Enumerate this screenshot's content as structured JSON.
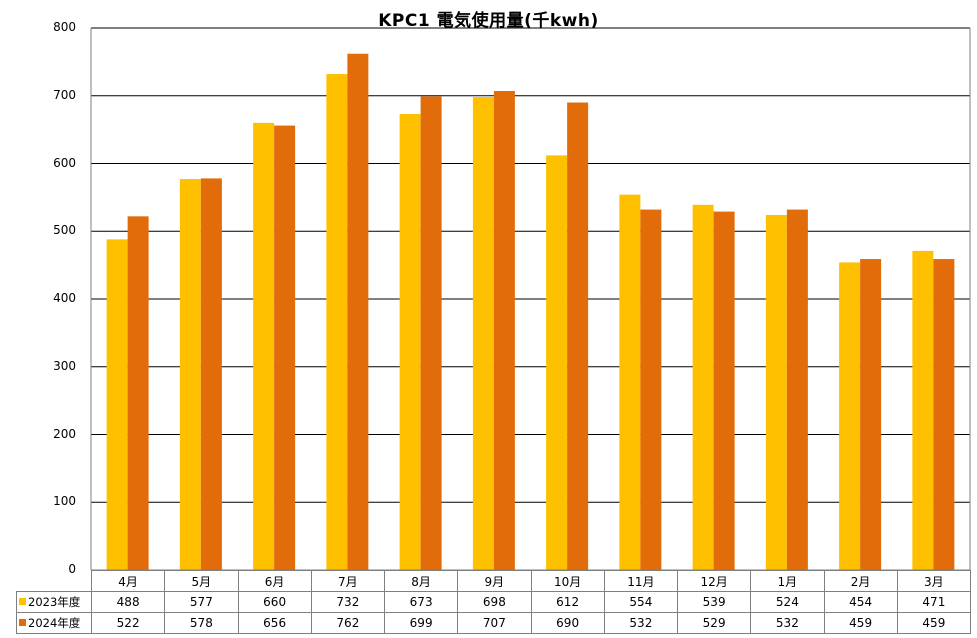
{
  "chart_data": {
    "type": "bar",
    "title": "KPC1 電気使用量(千kwh)",
    "categories": [
      "4月",
      "5月",
      "6月",
      "7月",
      "8月",
      "9月",
      "10月",
      "11月",
      "12月",
      "1月",
      "2月",
      "3月"
    ],
    "series": [
      {
        "name": "2023年度",
        "color": "#FFC000",
        "values": [
          488,
          577,
          660,
          732,
          673,
          698,
          612,
          554,
          539,
          524,
          454,
          471
        ]
      },
      {
        "name": "2024年度",
        "color": "#E36C0A",
        "values": [
          522,
          578,
          656,
          762,
          699,
          707,
          690,
          532,
          529,
          532,
          459,
          459
        ]
      }
    ],
    "ylim": [
      0,
      800
    ],
    "yticks": [
      "0",
      "100",
      "200",
      "300",
      "400",
      "500",
      "600",
      "700",
      "800"
    ],
    "grid": true,
    "legend": "data-table-below",
    "gridline_color": "#000000"
  }
}
